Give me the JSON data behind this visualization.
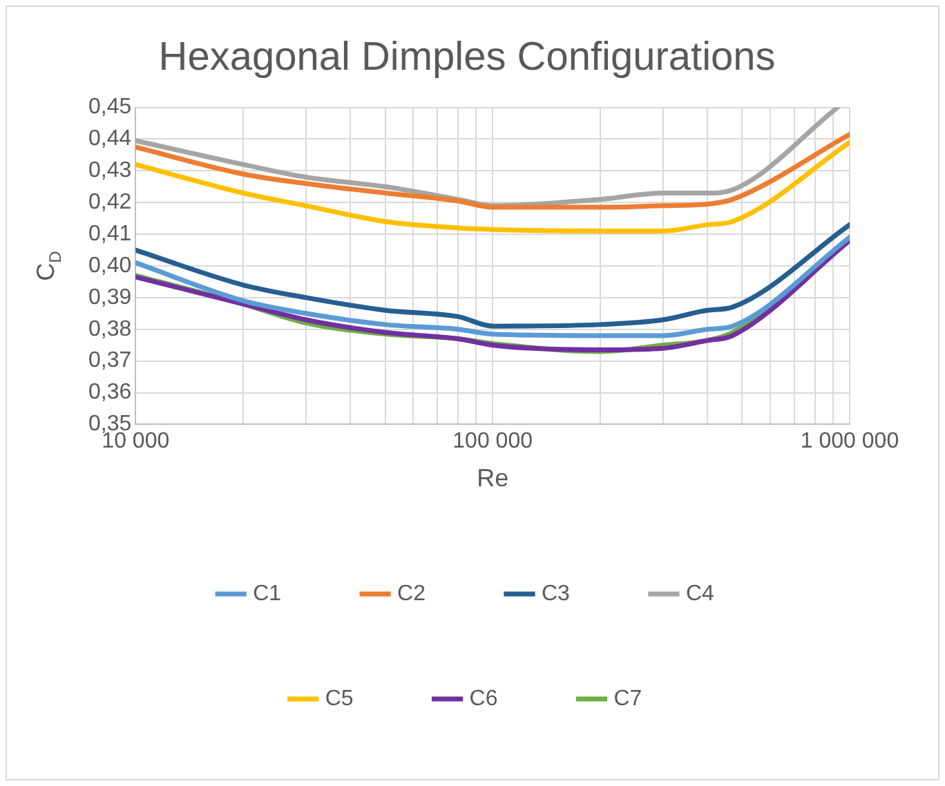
{
  "chart_data": {
    "type": "line",
    "title": "Hexagonal Dimples Configurations",
    "xlabel": "Re",
    "ylabel": "C$_{D}$",
    "log": "x",
    "grid": true,
    "legend": "bottom",
    "marker": "none",
    "line_style": "solid",
    "x": [
      10000,
      20000,
      30000,
      50000,
      80000,
      100000,
      200000,
      300000,
      400000,
      470000,
      1000000
    ],
    "xlim": [
      10000,
      1000000
    ],
    "xticks": [
      {
        "value": 10000,
        "label": "10 000"
      },
      {
        "value": 20000,
        "label": null
      },
      {
        "value": 30000,
        "label": null
      },
      {
        "value": 40000,
        "label": null
      },
      {
        "value": 50000,
        "label": null
      },
      {
        "value": 60000,
        "label": null
      },
      {
        "value": 70000,
        "label": null
      },
      {
        "value": 80000,
        "label": null
      },
      {
        "value": 90000,
        "label": null
      },
      {
        "value": 100000,
        "label": "100 000"
      },
      {
        "value": 200000,
        "label": null
      },
      {
        "value": 300000,
        "label": null
      },
      {
        "value": 400000,
        "label": null
      },
      {
        "value": 500000,
        "label": null
      },
      {
        "value": 600000,
        "label": null
      },
      {
        "value": 700000,
        "label": null
      },
      {
        "value": 800000,
        "label": null
      },
      {
        "value": 900000,
        "label": null
      },
      {
        "value": 1000000,
        "label": "1 000 000"
      }
    ],
    "ylim": [
      0.35,
      0.45
    ],
    "yticks": [
      {
        "value": 0.35,
        "label": "0,35"
      },
      {
        "value": 0.36,
        "label": "0,36"
      },
      {
        "value": 0.37,
        "label": "0,37"
      },
      {
        "value": 0.38,
        "label": "0,38"
      },
      {
        "value": 0.39,
        "label": "0,39"
      },
      {
        "value": 0.4,
        "label": "0,40"
      },
      {
        "value": 0.41,
        "label": "0,41"
      },
      {
        "value": 0.42,
        "label": "0,42"
      },
      {
        "value": 0.43,
        "label": "0,43"
      },
      {
        "value": 0.44,
        "label": "0,44"
      },
      {
        "value": 0.45,
        "label": "0,45"
      }
    ],
    "series": [
      {
        "name": "C1",
        "color": "#5b9bd5",
        "values": [
          0.401,
          0.389,
          0.385,
          0.3815,
          0.38,
          0.3785,
          0.378,
          0.378,
          0.38,
          0.381,
          0.409
        ]
      },
      {
        "name": "C2",
        "color": "#ed7d31",
        "values": [
          0.4375,
          0.429,
          0.426,
          0.423,
          0.4205,
          0.4185,
          0.4185,
          0.419,
          0.4195,
          0.421,
          0.4415
        ]
      },
      {
        "name": "C3",
        "color": "#255e91",
        "values": [
          0.405,
          0.394,
          0.39,
          0.386,
          0.384,
          0.381,
          0.3815,
          0.383,
          0.386,
          0.387,
          0.413
        ]
      },
      {
        "name": "C4",
        "color": "#a5a5a5",
        "x": [
          10000,
          20000,
          30000,
          50000,
          80000,
          100000,
          200000,
          300000,
          400000,
          470000,
          925000
        ],
        "values": [
          0.4395,
          0.432,
          0.428,
          0.425,
          0.421,
          0.419,
          0.421,
          0.423,
          0.423,
          0.424,
          0.45
        ]
      },
      {
        "name": "C5",
        "color": "#ffc000",
        "values": [
          0.432,
          0.423,
          0.419,
          0.414,
          0.412,
          0.4115,
          0.411,
          0.411,
          0.413,
          0.414,
          0.439
        ]
      },
      {
        "name": "C6",
        "color": "#7030a0",
        "values": [
          0.3965,
          0.388,
          0.383,
          0.379,
          0.377,
          0.375,
          0.3735,
          0.374,
          0.3765,
          0.378,
          0.408
        ]
      },
      {
        "name": "C7",
        "color": "#70ad47",
        "values": [
          0.397,
          0.388,
          0.382,
          0.3785,
          0.377,
          0.3755,
          0.373,
          0.375,
          0.3765,
          0.379,
          0.409
        ]
      }
    ]
  }
}
